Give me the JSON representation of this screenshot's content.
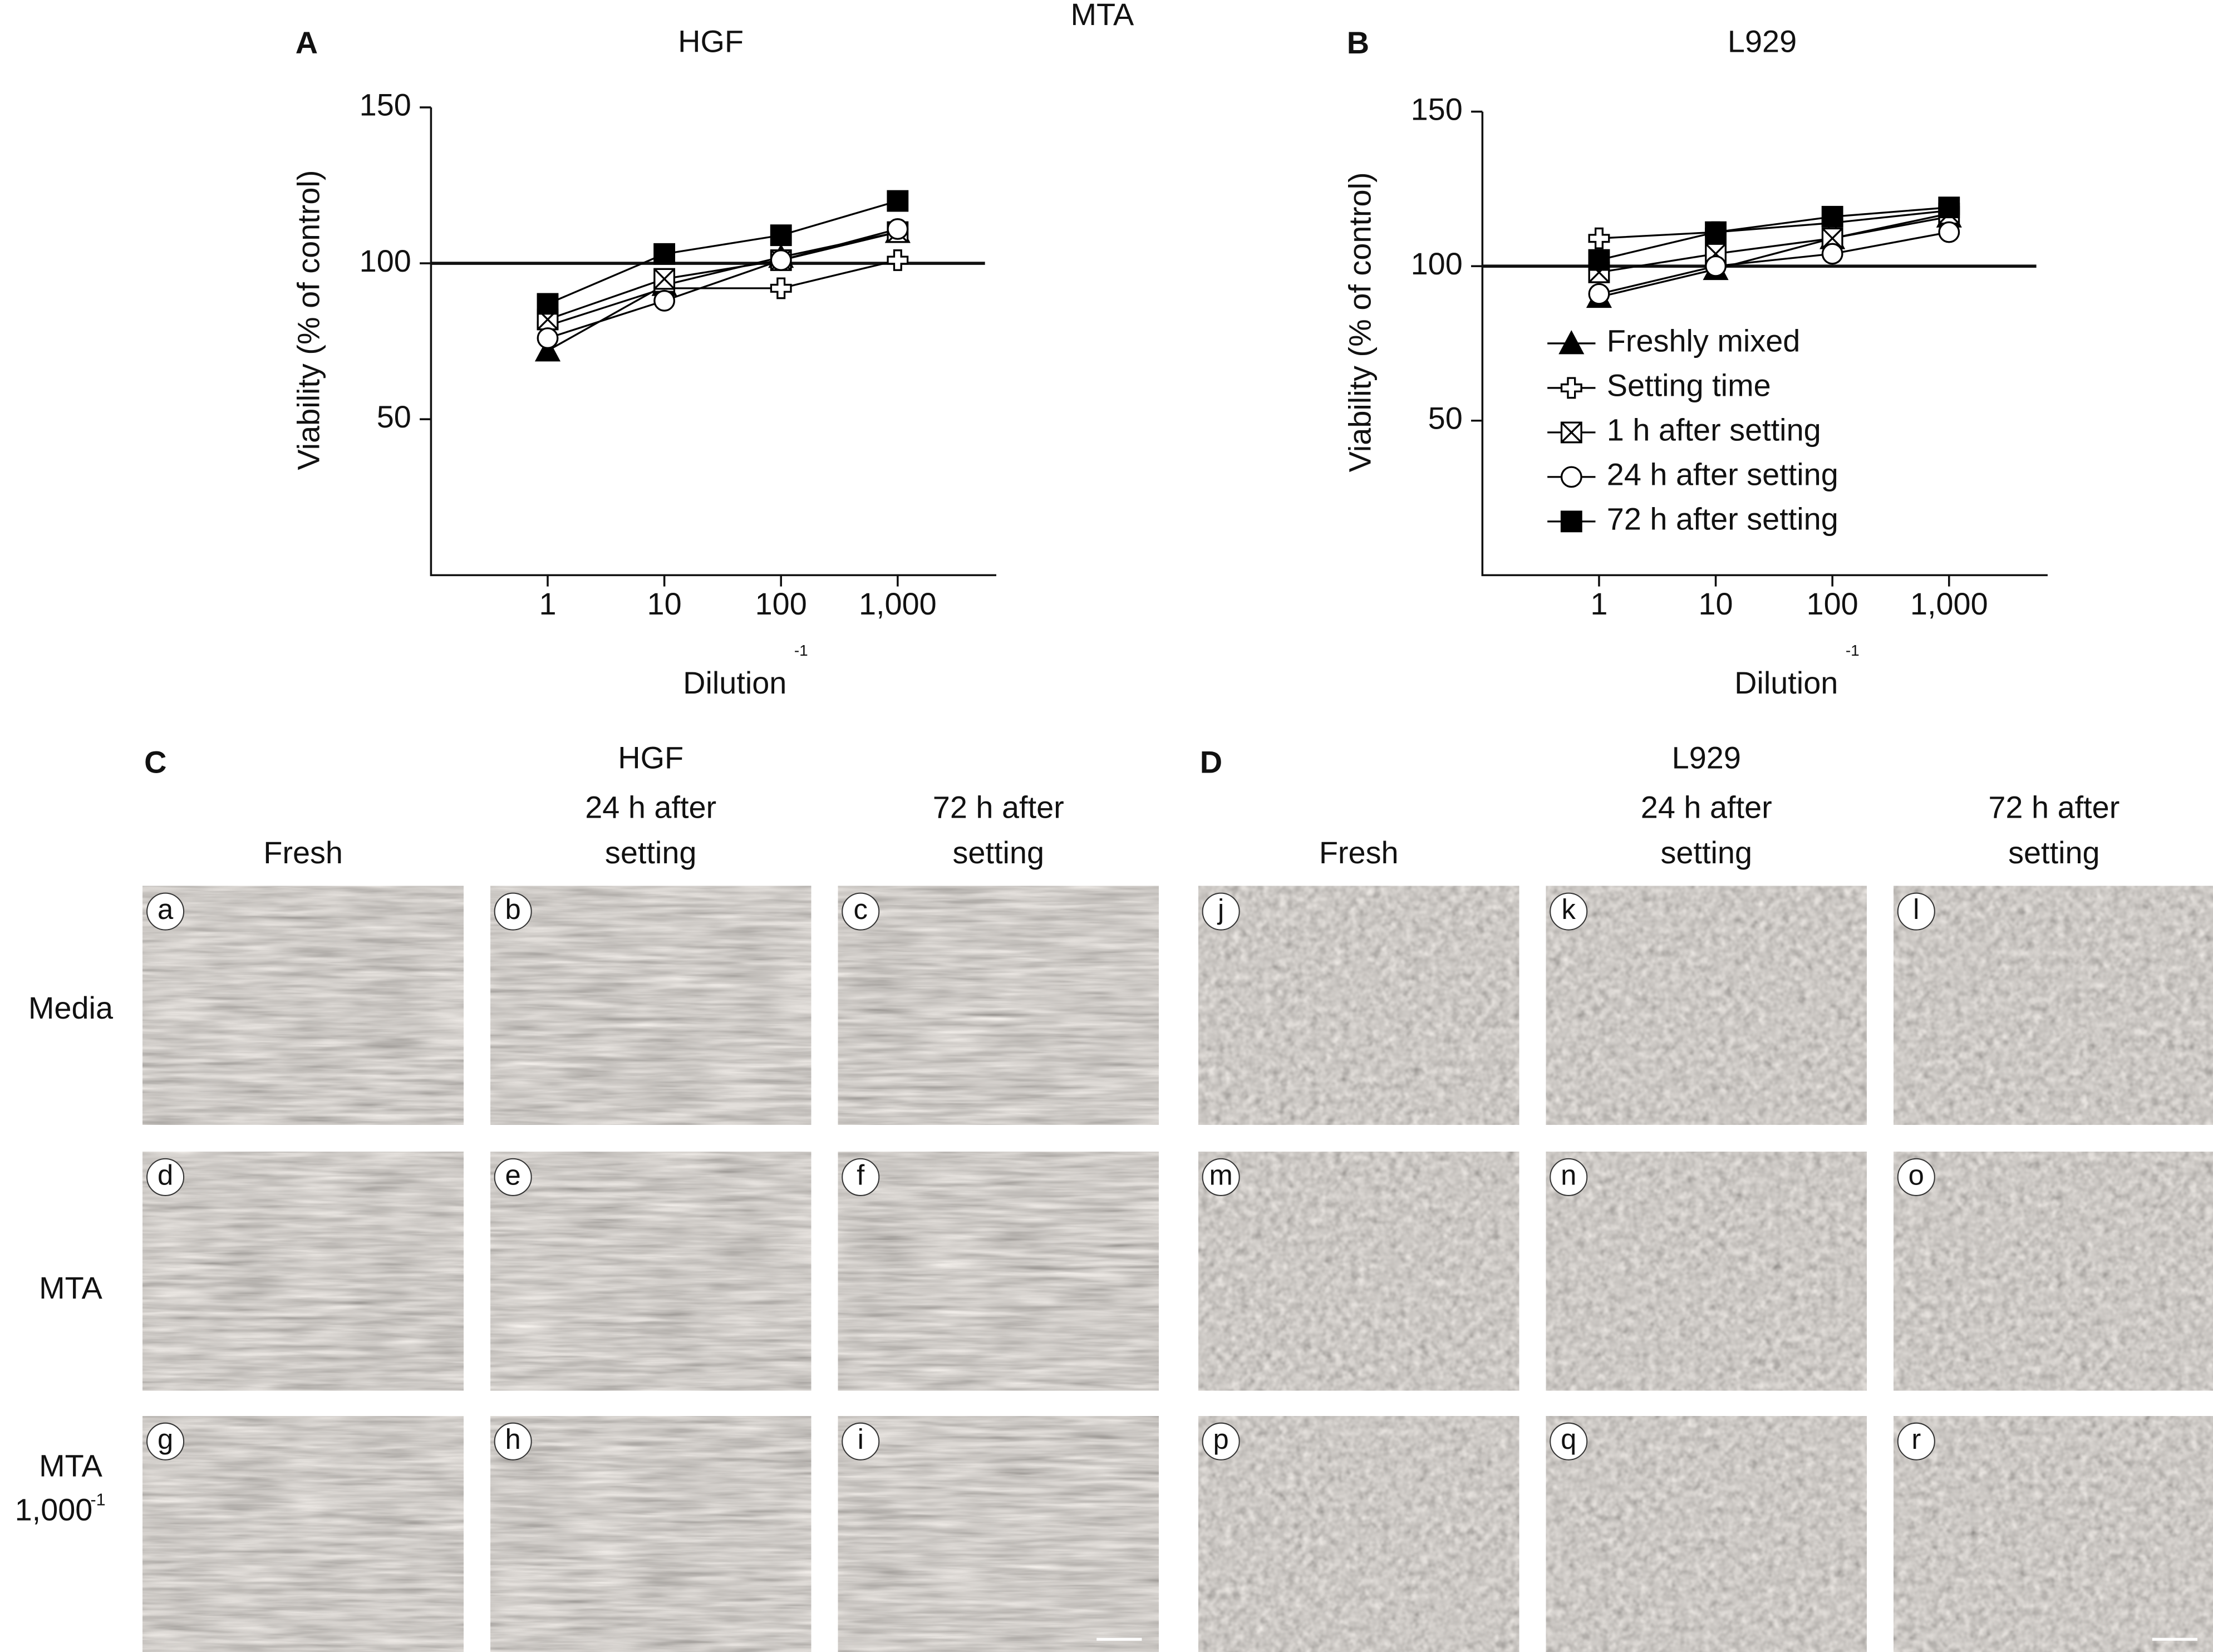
{
  "figure_title": "MTA",
  "chart_data": [
    {
      "type": "line",
      "panel": "A",
      "title": "HGF",
      "y_label": "Viability (% of control)",
      "x_label": "Dilution",
      "x_label_superscript": "-1",
      "x": [
        1,
        10,
        100,
        1000
      ],
      "xscale": "log",
      "xlim": [
        0.1,
        7000
      ],
      "xticks": [
        1,
        10,
        100,
        {
          "value": 1000,
          "label": "1,000"
        }
      ],
      "ylim": [
        0,
        150
      ],
      "yticks": [
        50,
        100,
        150
      ],
      "reference_line": 100,
      "series": [
        {
          "name": "Freshly mixed",
          "color": "#000000",
          "marker": "triangle",
          "values": [
            72,
            93,
            102,
            110
          ]
        },
        {
          "name": "Setting time",
          "color": "#000000",
          "marker": "cross",
          "values": [
            80,
            92,
            92,
            101
          ]
        },
        {
          "name": "1 h after setting",
          "color": "#000000",
          "marker": "box-x",
          "values": [
            82,
            95,
            101,
            110
          ]
        },
        {
          "name": "24 h after setting",
          "color": "#000000",
          "marker": "circle",
          "values": [
            76,
            88,
            101,
            111
          ]
        },
        {
          "name": "72 h after setting",
          "color": "#000000",
          "marker": "square",
          "values": [
            87,
            103,
            109,
            120
          ]
        }
      ]
    },
    {
      "type": "line",
      "panel": "B",
      "title": "L929",
      "y_label": "Viability (% of control)",
      "x_label": "Dilution",
      "x_label_superscript": "-1",
      "x": [
        1,
        10,
        100,
        1000
      ],
      "xscale": "log",
      "xlim": [
        0.1,
        7000
      ],
      "xticks": [
        1,
        10,
        100,
        {
          "value": 1000,
          "label": "1,000"
        }
      ],
      "ylim": [
        0,
        150
      ],
      "yticks": [
        50,
        100,
        150
      ],
      "reference_line": 100,
      "legend": "center-left",
      "series": [
        {
          "name": "Freshly mixed",
          "color": "#000000",
          "marker": "triangle",
          "values": [
            90,
            99,
            109,
            116
          ]
        },
        {
          "name": "Setting time",
          "color": "#000000",
          "marker": "cross",
          "values": [
            109,
            111,
            114,
            118
          ]
        },
        {
          "name": "1 h after setting",
          "color": "#000000",
          "marker": "box-x",
          "values": [
            98,
            104,
            109,
            117
          ]
        },
        {
          "name": "24 h after setting",
          "color": "#000000",
          "marker": "circle",
          "values": [
            91,
            100,
            104,
            111
          ]
        },
        {
          "name": "72 h after setting",
          "color": "#000000",
          "marker": "square",
          "values": [
            102,
            111,
            116,
            119
          ]
        }
      ]
    }
  ],
  "micrographs": {
    "row_labels": [
      [
        "Media"
      ],
      [
        "MTA"
      ],
      [
        "MTA",
        "1,000"
      ]
    ],
    "last_row_superscript": "-1",
    "panels": [
      {
        "letter": "C",
        "cell_type": "HGF",
        "columns": [
          [
            "Fresh"
          ],
          [
            "24 h after",
            "setting"
          ],
          [
            "72 h after",
            "setting"
          ]
        ],
        "images": [
          [
            "a",
            "b",
            "c"
          ],
          [
            "d",
            "e",
            "f"
          ],
          [
            "g",
            "h",
            "i"
          ]
        ]
      },
      {
        "letter": "D",
        "cell_type": "L929",
        "columns": [
          [
            "Fresh"
          ],
          [
            "24 h after",
            "setting"
          ],
          [
            "72 h after",
            "setting"
          ]
        ],
        "images": [
          [
            "j",
            "k",
            "l"
          ],
          [
            "m",
            "n",
            "o"
          ],
          [
            "p",
            "q",
            "r"
          ]
        ]
      }
    ]
  }
}
